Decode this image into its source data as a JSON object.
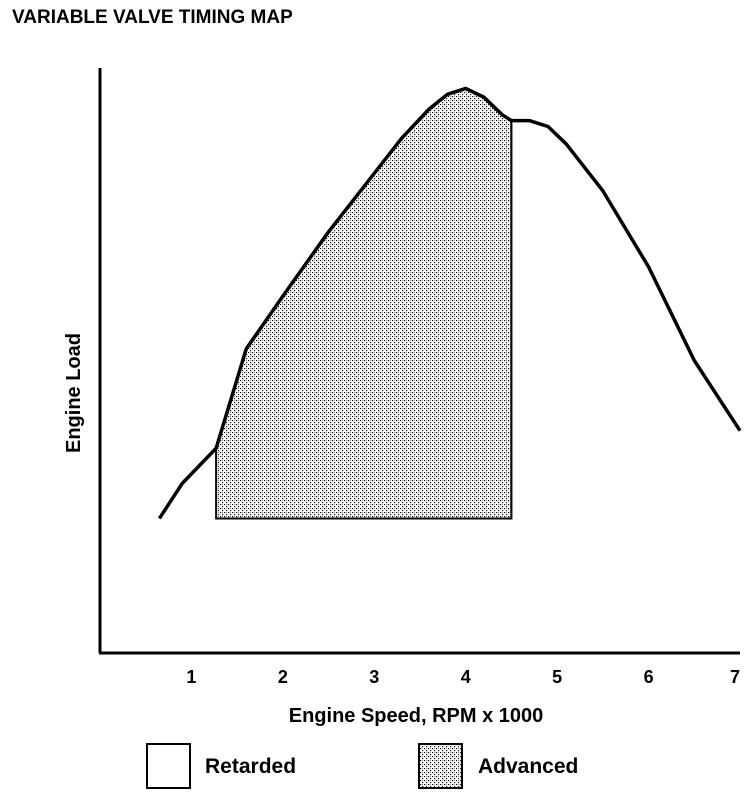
{
  "chart_data": {
    "type": "area",
    "title": "VARIABLE VALVE TIMING MAP",
    "xlabel": "Engine Speed, RPM x 1000",
    "ylabel": "Engine Load",
    "xlim": [
      0,
      7
    ],
    "ylim": [
      0,
      100
    ],
    "x_ticks": [
      "1",
      "2",
      "3",
      "4",
      "5",
      "6",
      "7"
    ],
    "x_tick_values": [
      1,
      2,
      3,
      4,
      5,
      6,
      7
    ],
    "grid": false,
    "curve": {
      "x": [
        0.65,
        0.9,
        1.27,
        1.6,
        2.0,
        2.5,
        3.0,
        3.3,
        3.6,
        3.8,
        4.0,
        4.2,
        4.4,
        4.5,
        4.7,
        4.9,
        5.1,
        5.5,
        6.0,
        6.5,
        7.0
      ],
      "y": [
        23,
        29,
        35,
        52,
        61,
        72,
        82,
        88,
        93,
        95.5,
        96.5,
        95,
        92,
        91,
        91,
        90,
        87,
        79,
        66,
        50,
        38
      ]
    },
    "advanced_region": {
      "x_start": 1.27,
      "x_end": 4.5,
      "y_bottom": 23
    },
    "legend": [
      {
        "label": "Retarded",
        "fill": "blank"
      },
      {
        "label": "Advanced",
        "fill": "stipple"
      }
    ],
    "colors": {
      "line": "#000000",
      "stipple_dark": "#111111",
      "stipple_light": "#ffffff"
    }
  }
}
